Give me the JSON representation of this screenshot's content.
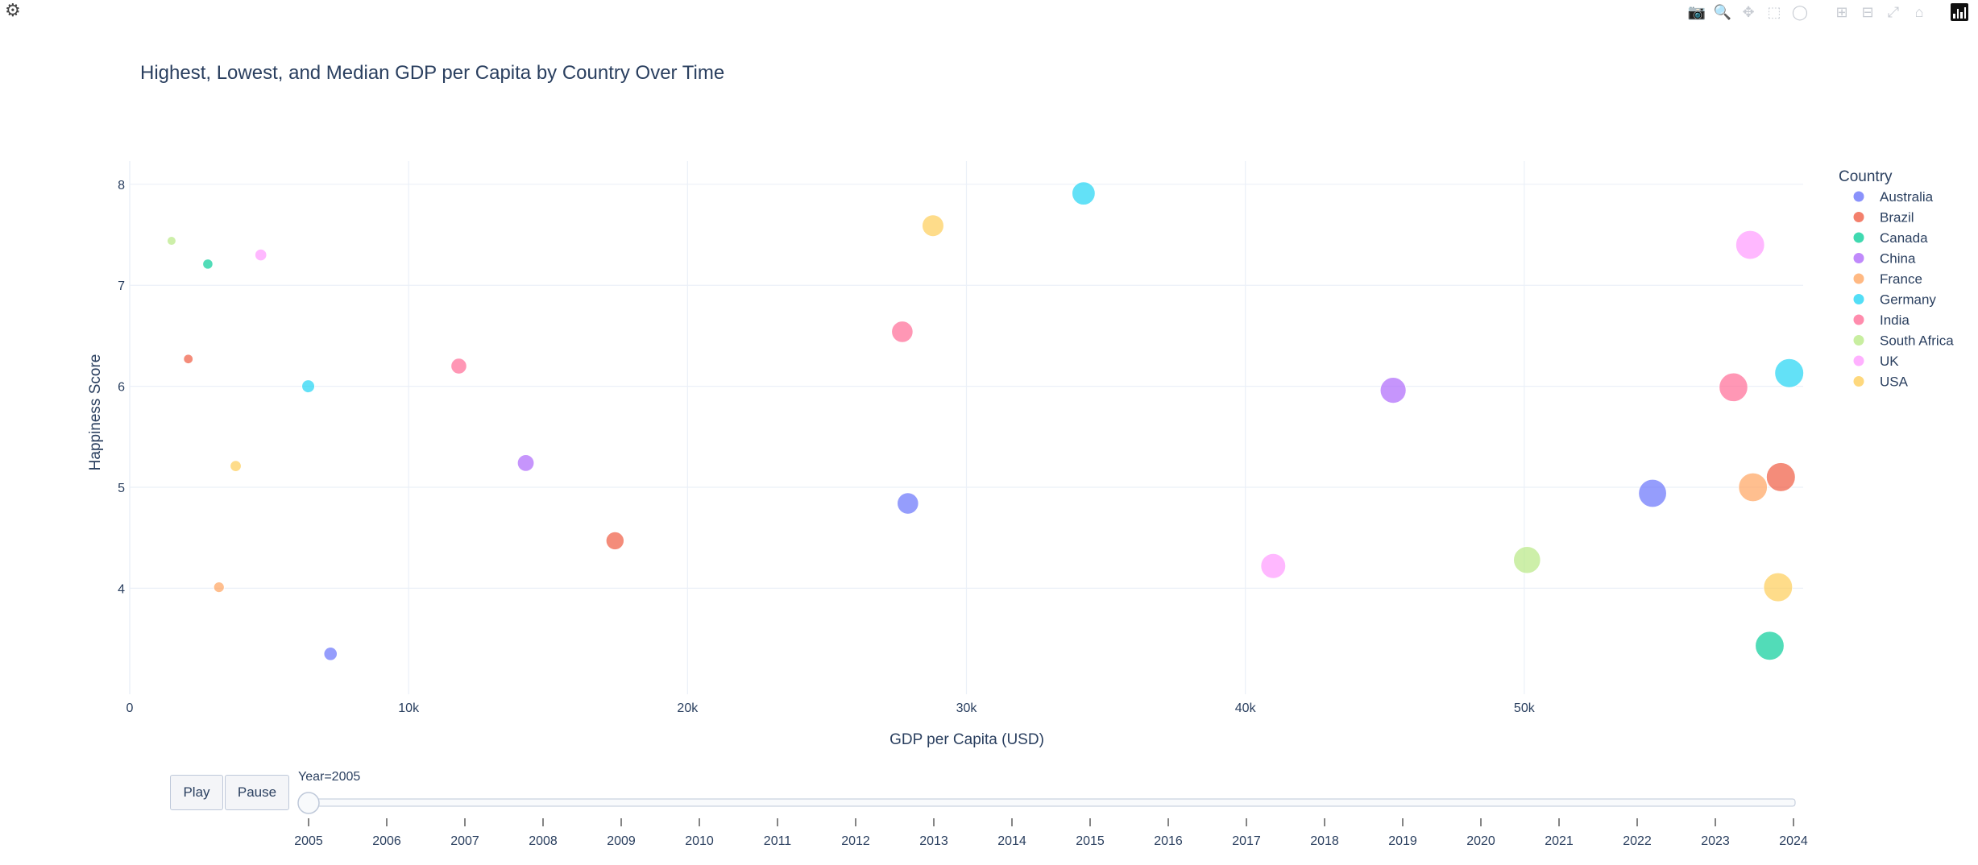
{
  "title": "Highest, Lowest, and Median GDP per Capita by Country Over Time",
  "modebar": {
    "icons": [
      "camera-icon",
      "zoom-icon",
      "pan-icon",
      "box-select-icon",
      "lasso-icon",
      "zoom-in-icon",
      "zoom-out-icon",
      "autoscale-icon",
      "reset-axes-icon",
      "plotly-logo-icon"
    ]
  },
  "controls": {
    "play_label": "Play",
    "pause_label": "Pause",
    "slider_prefix": "Year=2005",
    "slider_value": 2005,
    "slider_ticks": [
      "2005",
      "2006",
      "2007",
      "2008",
      "2009",
      "2010",
      "2011",
      "2012",
      "2013",
      "2014",
      "2015",
      "2016",
      "2017",
      "2018",
      "2019",
      "2020",
      "2021",
      "2022",
      "2023",
      "2024"
    ]
  },
  "chart_data": {
    "type": "scatter",
    "title": "Highest, Lowest, and Median GDP per Capita by Country Over Time",
    "xlabel": "GDP per Capita (USD)",
    "ylabel": "Happiness Score",
    "xlim": [
      0,
      60000
    ],
    "ylim": [
      2.95,
      8.23
    ],
    "x_ticks": [
      0,
      10000,
      20000,
      30000,
      40000,
      50000
    ],
    "x_tick_labels": [
      "0",
      "10k",
      "20k",
      "30k",
      "40k",
      "50k"
    ],
    "y_ticks": [
      4,
      5,
      6,
      7,
      8
    ],
    "y_tick_labels": [
      "4",
      "5",
      "6",
      "7",
      "8"
    ],
    "grid": true,
    "legend_title": "Country",
    "legend_position": "right",
    "series": [
      {
        "name": "Australia",
        "color": "#636efa",
        "points": [
          {
            "x": 7200,
            "y": 3.35,
            "gdp": 7200
          },
          {
            "x": 27900,
            "y": 4.84,
            "gdp": 27900
          },
          {
            "x": 54600,
            "y": 4.94,
            "gdp": 54600
          }
        ]
      },
      {
        "name": "Brazil",
        "color": "#EF553B",
        "points": [
          {
            "x": 2100,
            "y": 6.27,
            "gdp": 2100
          },
          {
            "x": 17400,
            "y": 4.47,
            "gdp": 17400
          },
          {
            "x": 59200,
            "y": 5.1,
            "gdp": 59200
          }
        ]
      },
      {
        "name": "Canada",
        "color": "#00cc96",
        "points": [
          {
            "x": 2800,
            "y": 7.21,
            "gdp": 2800
          },
          {
            "x": 58800,
            "y": 3.43,
            "gdp": 58800
          }
        ]
      },
      {
        "name": "China",
        "color": "#ab63fa",
        "points": [
          {
            "x": 14200,
            "y": 5.24,
            "gdp": 14200
          },
          {
            "x": 45300,
            "y": 5.96,
            "gdp": 45300
          }
        ]
      },
      {
        "name": "France",
        "color": "#FFA15A",
        "points": [
          {
            "x": 3200,
            "y": 4.01,
            "gdp": 3200
          },
          {
            "x": 58200,
            "y": 5.0,
            "gdp": 58200
          }
        ]
      },
      {
        "name": "Germany",
        "color": "#19d3f3",
        "points": [
          {
            "x": 6400,
            "y": 6.0,
            "gdp": 6400
          },
          {
            "x": 34200,
            "y": 7.91,
            "gdp": 34200
          },
          {
            "x": 59500,
            "y": 6.13,
            "gdp": 59500
          }
        ]
      },
      {
        "name": "India",
        "color": "#FF6692",
        "points": [
          {
            "x": 11800,
            "y": 6.2,
            "gdp": 11800
          },
          {
            "x": 27700,
            "y": 6.54,
            "gdp": 27700
          },
          {
            "x": 57500,
            "y": 5.99,
            "gdp": 57500
          }
        ]
      },
      {
        "name": "South Africa",
        "color": "#B6E880",
        "points": [
          {
            "x": 1500,
            "y": 7.44,
            "gdp": 1500
          },
          {
            "x": 50100,
            "y": 4.28,
            "gdp": 50100
          }
        ]
      },
      {
        "name": "UK",
        "color": "#FF97FF",
        "points": [
          {
            "x": 4700,
            "y": 7.3,
            "gdp": 4700
          },
          {
            "x": 41000,
            "y": 4.22,
            "gdp": 41000
          },
          {
            "x": 58100,
            "y": 7.4,
            "gdp": 58100
          }
        ]
      },
      {
        "name": "USA",
        "color": "#FECB52",
        "points": [
          {
            "x": 3800,
            "y": 5.21,
            "gdp": 3800
          },
          {
            "x": 28800,
            "y": 7.59,
            "gdp": 28800
          },
          {
            "x": 59100,
            "y": 4.01,
            "gdp": 59100
          }
        ]
      }
    ]
  }
}
